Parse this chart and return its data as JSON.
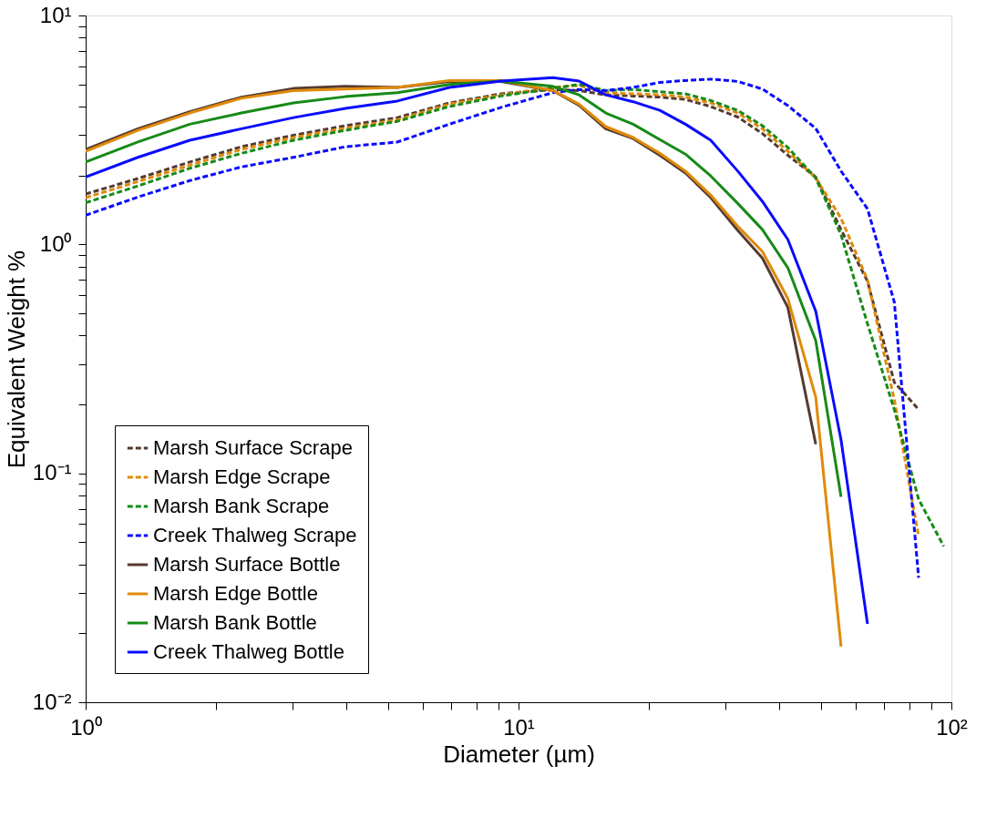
{
  "chart_data": {
    "type": "line",
    "xlabel": "Diameter (µm)",
    "ylabel": "Equivalent Weight %",
    "log": "xy",
    "grid": false,
    "legend": "bottom left",
    "marker": "none",
    "xlim": [
      1,
      100
    ],
    "ylim": [
      0.01,
      10
    ],
    "xticks": [
      {
        "value": 1,
        "label": "10⁰"
      },
      {
        "value": 2,
        "label": null
      },
      {
        "value": 3,
        "label": null
      },
      {
        "value": 4,
        "label": null
      },
      {
        "value": 5,
        "label": null
      },
      {
        "value": 6,
        "label": null
      },
      {
        "value": 7,
        "label": null
      },
      {
        "value": 8,
        "label": null
      },
      {
        "value": 9,
        "label": null
      },
      {
        "value": 10,
        "label": "10¹"
      },
      {
        "value": 20,
        "label": null
      },
      {
        "value": 30,
        "label": null
      },
      {
        "value": 40,
        "label": null
      },
      {
        "value": 50,
        "label": null
      },
      {
        "value": 60,
        "label": null
      },
      {
        "value": 70,
        "label": null
      },
      {
        "value": 80,
        "label": null
      },
      {
        "value": 90,
        "label": null
      },
      {
        "value": 100,
        "label": "10²"
      }
    ],
    "yticks": [
      {
        "value": 0.01,
        "label": "10⁻²"
      },
      {
        "value": 0.02,
        "label": null
      },
      {
        "value": 0.03,
        "label": null
      },
      {
        "value": 0.04,
        "label": null
      },
      {
        "value": 0.05,
        "label": null
      },
      {
        "value": 0.06,
        "label": null
      },
      {
        "value": 0.07,
        "label": null
      },
      {
        "value": 0.08,
        "label": null
      },
      {
        "value": 0.09,
        "label": null
      },
      {
        "value": 0.1,
        "label": "10⁻¹"
      },
      {
        "value": 0.2,
        "label": null
      },
      {
        "value": 0.3,
        "label": null
      },
      {
        "value": 0.4,
        "label": null
      },
      {
        "value": 0.5,
        "label": null
      },
      {
        "value": 0.6,
        "label": null
      },
      {
        "value": 0.7,
        "label": null
      },
      {
        "value": 0.8,
        "label": null
      },
      {
        "value": 0.9,
        "label": null
      },
      {
        "value": 1,
        "label": "10⁰"
      },
      {
        "value": 2,
        "label": null
      },
      {
        "value": 3,
        "label": null
      },
      {
        "value": 4,
        "label": null
      },
      {
        "value": 5,
        "label": null
      },
      {
        "value": 6,
        "label": null
      },
      {
        "value": 7,
        "label": null
      },
      {
        "value": 8,
        "label": null
      },
      {
        "value": 9,
        "label": null
      },
      {
        "value": 10,
        "label": "10¹"
      }
    ],
    "series": [
      {
        "name": "Marsh Surface Scrape",
        "color": "#553a30",
        "line_style": "dashed",
        "x": [
          1,
          1.32,
          1.74,
          2.29,
          3.02,
          3.98,
          5.25,
          6.92,
          9.12,
          12,
          13.8,
          15.9,
          18.4,
          21.2,
          24.3,
          27.8,
          32.1,
          36.6,
          41.9,
          48.6,
          55.6,
          64,
          73.8,
          84
        ],
        "values": [
          1.66,
          1.94,
          2.29,
          2.67,
          3.0,
          3.3,
          3.58,
          4.15,
          4.55,
          4.75,
          4.7,
          4.5,
          4.45,
          4.4,
          4.3,
          4.0,
          3.6,
          3.05,
          2.45,
          1.97,
          1.16,
          0.69,
          0.25,
          0.19
        ]
      },
      {
        "name": "Marsh Edge Scrape",
        "color": "#e08a0a",
        "line_style": "dashed",
        "x": [
          1,
          1.32,
          1.74,
          2.29,
          3.02,
          3.98,
          5.25,
          6.92,
          9.12,
          12,
          13.8,
          15.9,
          18.4,
          21.2,
          24.3,
          27.8,
          32.1,
          36.6,
          41.9,
          48.6,
          55.6,
          64,
          73.8,
          84
        ],
        "values": [
          1.6,
          1.88,
          2.22,
          2.6,
          2.93,
          3.22,
          3.5,
          4.1,
          4.5,
          4.85,
          4.95,
          4.6,
          4.55,
          4.5,
          4.4,
          4.15,
          3.75,
          3.2,
          2.55,
          1.95,
          1.3,
          0.7,
          0.21,
          0.053
        ]
      },
      {
        "name": "Marsh Bank Scrape",
        "color": "#178a17",
        "line_style": "dashed",
        "x": [
          1,
          1.32,
          1.74,
          2.29,
          3.02,
          3.98,
          5.25,
          6.92,
          9.12,
          12,
          13.8,
          15.9,
          18.4,
          21.2,
          24.3,
          27.8,
          32.1,
          36.6,
          41.9,
          48.6,
          55.6,
          64,
          73.8,
          84,
          96
        ],
        "values": [
          1.52,
          1.8,
          2.15,
          2.5,
          2.85,
          3.15,
          3.45,
          4.0,
          4.45,
          4.8,
          5.0,
          4.7,
          4.75,
          4.65,
          4.55,
          4.25,
          3.85,
          3.3,
          2.65,
          1.95,
          1.1,
          0.45,
          0.19,
          0.077,
          0.048
        ]
      },
      {
        "name": "Creek Thalweg Scrape",
        "color": "#0a0aff",
        "line_style": "dashed",
        "x": [
          1,
          1.32,
          1.74,
          2.29,
          3.02,
          3.98,
          5.25,
          6.92,
          9.12,
          12,
          13.8,
          15.9,
          18.4,
          21.2,
          24.3,
          27.8,
          32.1,
          36.6,
          41.9,
          48.6,
          55.6,
          64,
          73.8,
          84
        ],
        "values": [
          1.34,
          1.61,
          1.9,
          2.18,
          2.4,
          2.67,
          2.8,
          3.35,
          3.97,
          4.6,
          4.75,
          4.7,
          4.85,
          5.1,
          5.2,
          5.27,
          5.15,
          4.77,
          4.04,
          3.21,
          2.09,
          1.43,
          0.56,
          0.035
        ]
      },
      {
        "name": "Marsh Surface Bottle",
        "color": "#553a30",
        "line_style": "solid",
        "x": [
          1,
          1.32,
          1.74,
          2.29,
          3.02,
          3.98,
          5.25,
          6.92,
          9.12,
          12,
          13.8,
          15.9,
          18.4,
          21.2,
          24.3,
          27.8,
          32.1,
          36.6,
          41.9,
          48.6
        ],
        "values": [
          2.6,
          3.2,
          3.8,
          4.4,
          4.8,
          4.9,
          4.85,
          5.15,
          5.15,
          4.7,
          4.05,
          3.2,
          2.9,
          2.45,
          2.05,
          1.6,
          1.15,
          0.87,
          0.53,
          0.134
        ]
      },
      {
        "name": "Marsh Edge Bottle",
        "color": "#e08a0a",
        "line_style": "solid",
        "x": [
          1,
          1.32,
          1.74,
          2.29,
          3.02,
          3.98,
          5.25,
          6.92,
          9.12,
          12,
          13.8,
          15.9,
          18.4,
          21.2,
          24.3,
          27.8,
          32.1,
          36.6,
          41.9,
          48.6,
          55.6
        ],
        "values": [
          2.55,
          3.15,
          3.75,
          4.35,
          4.7,
          4.77,
          4.85,
          5.2,
          5.2,
          4.7,
          4.1,
          3.27,
          2.93,
          2.5,
          2.09,
          1.64,
          1.2,
          0.93,
          0.58,
          0.215,
          0.0175
        ]
      },
      {
        "name": "Marsh Bank Bottle",
        "color": "#178a17",
        "line_style": "solid",
        "x": [
          1,
          1.32,
          1.74,
          2.29,
          3.02,
          3.98,
          5.25,
          6.92,
          9.12,
          12,
          13.8,
          15.9,
          18.4,
          21.2,
          24.3,
          27.8,
          32.1,
          36.6,
          41.9,
          48.6,
          55.6
        ],
        "values": [
          2.29,
          2.8,
          3.35,
          3.75,
          4.15,
          4.42,
          4.6,
          5.0,
          5.17,
          4.9,
          4.5,
          3.75,
          3.35,
          2.87,
          2.48,
          1.99,
          1.51,
          1.16,
          0.79,
          0.38,
          0.079
        ]
      },
      {
        "name": "Creek Thalweg Bottle",
        "color": "#0a0aff",
        "line_style": "solid",
        "x": [
          1,
          1.32,
          1.74,
          2.29,
          3.02,
          3.98,
          5.25,
          6.92,
          9.12,
          12,
          13.8,
          15.9,
          18.4,
          21.2,
          24.3,
          27.8,
          32.1,
          36.6,
          41.9,
          48.6,
          55.6,
          64
        ],
        "values": [
          1.97,
          2.4,
          2.85,
          3.2,
          3.58,
          3.93,
          4.23,
          4.85,
          5.17,
          5.35,
          5.17,
          4.5,
          4.2,
          3.85,
          3.35,
          2.85,
          2.09,
          1.54,
          1.05,
          0.51,
          0.14,
          0.022
        ]
      }
    ]
  }
}
